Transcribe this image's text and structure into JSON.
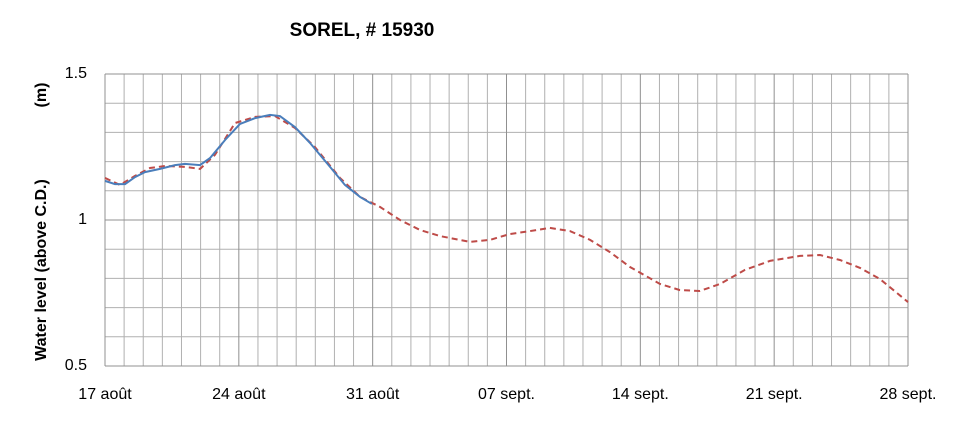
{
  "chart_data": {
    "type": "line",
    "title": "SOREL, # 15930",
    "ylabel": "Water level (above C.D.)",
    "yunit": "(m)",
    "xlim": [
      0,
      42
    ],
    "ylim": [
      0.5,
      1.5
    ],
    "xticks": [
      {
        "value": 0,
        "label": "17 août"
      },
      {
        "value": 7,
        "label": "24 août"
      },
      {
        "value": 14,
        "label": "31 août"
      },
      {
        "value": 21,
        "label": "07 sept."
      },
      {
        "value": 28,
        "label": "14 sept."
      },
      {
        "value": 35,
        "label": "21 sept."
      },
      {
        "value": 42,
        "label": "28 sept."
      }
    ],
    "yticks": [
      0.5,
      1,
      1.5
    ],
    "xminorticks": [
      1,
      2,
      3,
      4,
      5,
      6,
      8,
      9,
      10,
      11,
      12,
      13,
      15,
      16,
      17,
      18,
      19,
      20,
      22,
      23,
      24,
      25,
      26,
      27,
      29,
      30,
      31,
      32,
      33,
      34,
      36,
      37,
      38,
      39,
      40,
      41
    ],
    "yminorticks": [
      0.6,
      0.7,
      0.8,
      0.9,
      1.1,
      1.2,
      1.3,
      1.4
    ],
    "grid": true,
    "series": [
      {
        "color": "#be4b48",
        "dashed": true,
        "x": [
          0,
          0.78,
          1.57,
          2.35,
          3.14,
          4.18,
          4.97,
          5.75,
          6.8,
          7.85,
          8.89,
          9.94,
          10.98,
          12.29,
          13.34,
          14.38,
          15.43,
          16.47,
          17.52,
          19.09,
          20.14,
          21.18,
          22.23,
          23.27,
          24.32,
          25.37,
          26.41,
          27.46,
          29.03,
          30.07,
          31.12,
          32.17,
          33.47,
          34.78,
          36.35,
          37.4,
          38.44,
          39.49,
          40.53,
          42
        ],
        "values": [
          1.144,
          1.12,
          1.151,
          1.178,
          1.185,
          1.182,
          1.175,
          1.223,
          1.332,
          1.353,
          1.356,
          1.315,
          1.25,
          1.144,
          1.079,
          1.045,
          1.0,
          0.966,
          0.945,
          0.925,
          0.932,
          0.952,
          0.962,
          0.973,
          0.962,
          0.932,
          0.89,
          0.839,
          0.781,
          0.76,
          0.757,
          0.781,
          0.829,
          0.86,
          0.877,
          0.88,
          0.863,
          0.836,
          0.798,
          0.719
        ]
      },
      {
        "color": "#4a7ebb",
        "dashed": false,
        "x": [
          0,
          0.52,
          1.05,
          1.57,
          2.09,
          2.88,
          3.66,
          4.18,
          4.97,
          5.49,
          6.28,
          7.06,
          7.85,
          8.63,
          9.15,
          9.94,
          10.72,
          11.77,
          12.55,
          13.34,
          13.96
        ],
        "values": [
          1.134,
          1.123,
          1.123,
          1.147,
          1.164,
          1.175,
          1.188,
          1.192,
          1.188,
          1.212,
          1.274,
          1.329,
          1.349,
          1.36,
          1.356,
          1.318,
          1.264,
          1.182,
          1.12,
          1.079,
          1.055
        ]
      }
    ]
  }
}
